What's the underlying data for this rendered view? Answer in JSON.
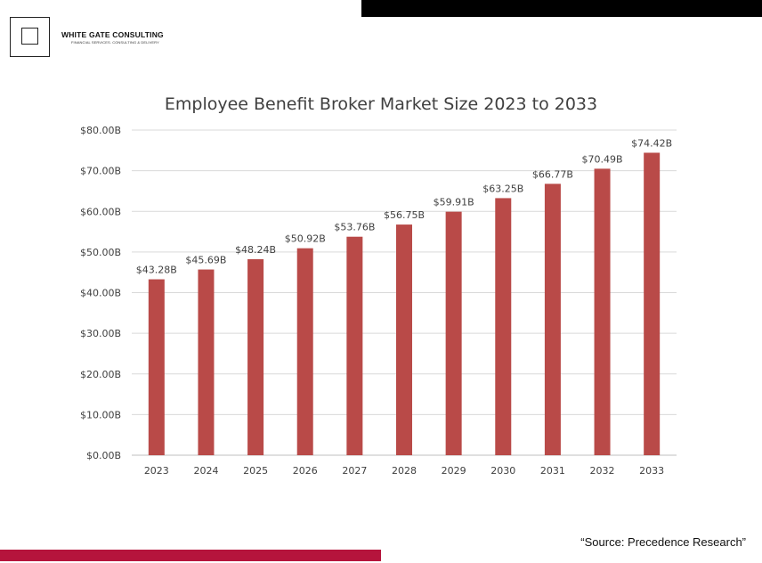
{
  "brand": {
    "name": "WHITE GATE CONSULTING",
    "tagline": "FINANCIAL SERVICES. CONSULTING & DELIVERY"
  },
  "source": "“Source: Precedence Research”",
  "colors": {
    "bar": "#b94a48",
    "accent_bar": "#b5143c",
    "top_bar": "#000000",
    "grid": "#d9d9d9",
    "text": "#404040"
  },
  "chart_data": {
    "type": "bar",
    "title": "Employee Benefit Broker Market Size 2023 to 2033",
    "xlabel": "",
    "ylabel": "",
    "categories": [
      "2023",
      "2024",
      "2025",
      "2026",
      "2027",
      "2028",
      "2029",
      "2030",
      "2031",
      "2032",
      "2033"
    ],
    "values": [
      43.28,
      45.69,
      48.24,
      50.92,
      53.76,
      56.75,
      59.91,
      63.25,
      66.77,
      70.49,
      74.42
    ],
    "data_labels": [
      "$43.28B",
      "$45.69B",
      "$48.24B",
      "$50.92B",
      "$53.76B",
      "$56.75B",
      "$59.91B",
      "$63.25B",
      "$66.77B",
      "$70.49B",
      "$74.42B"
    ],
    "ylim": [
      0,
      80
    ],
    "yticks": [
      0,
      10,
      20,
      30,
      40,
      50,
      60,
      70,
      80
    ],
    "ytick_labels": [
      "$0.00B",
      "$10.00B",
      "$20.00B",
      "$30.00B",
      "$40.00B",
      "$50.00B",
      "$60.00B",
      "$70.00B",
      "$80.00B"
    ],
    "grid": true,
    "legend": "none"
  }
}
